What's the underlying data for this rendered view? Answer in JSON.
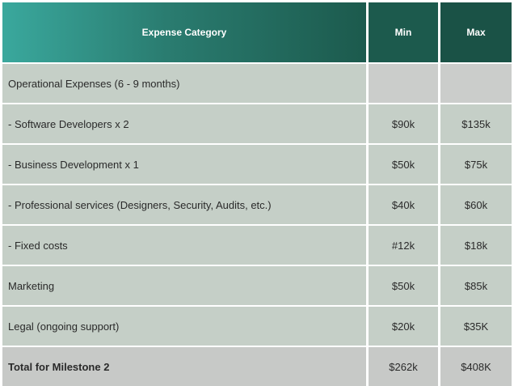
{
  "header": {
    "category": "Expense Category",
    "min": "Min",
    "max": "Max"
  },
  "rows": [
    {
      "category": "Operational Expenses (6 - 9 months)",
      "min": "",
      "max": ""
    },
    {
      "category": "- Software Developers x 2",
      "min": "$90k",
      "max": "$135k"
    },
    {
      "category": "- Business Development x 1",
      "min": "$50k",
      "max": "$75k"
    },
    {
      "category": "- Professional services (Designers, Security, Audits, etc.)",
      "min": "$40k",
      "max": "$60k"
    },
    {
      "category": "- Fixed costs",
      "min": "#12k",
      "max": "$18k"
    },
    {
      "category": "Marketing",
      "min": "$50k",
      "max": "$85k"
    },
    {
      "category": "Legal (ongoing  support)",
      "min": "$20k",
      "max": "$35K"
    }
  ],
  "total": {
    "category": "Total for Milestone 2",
    "min": "$262k",
    "max": "$408K"
  }
}
